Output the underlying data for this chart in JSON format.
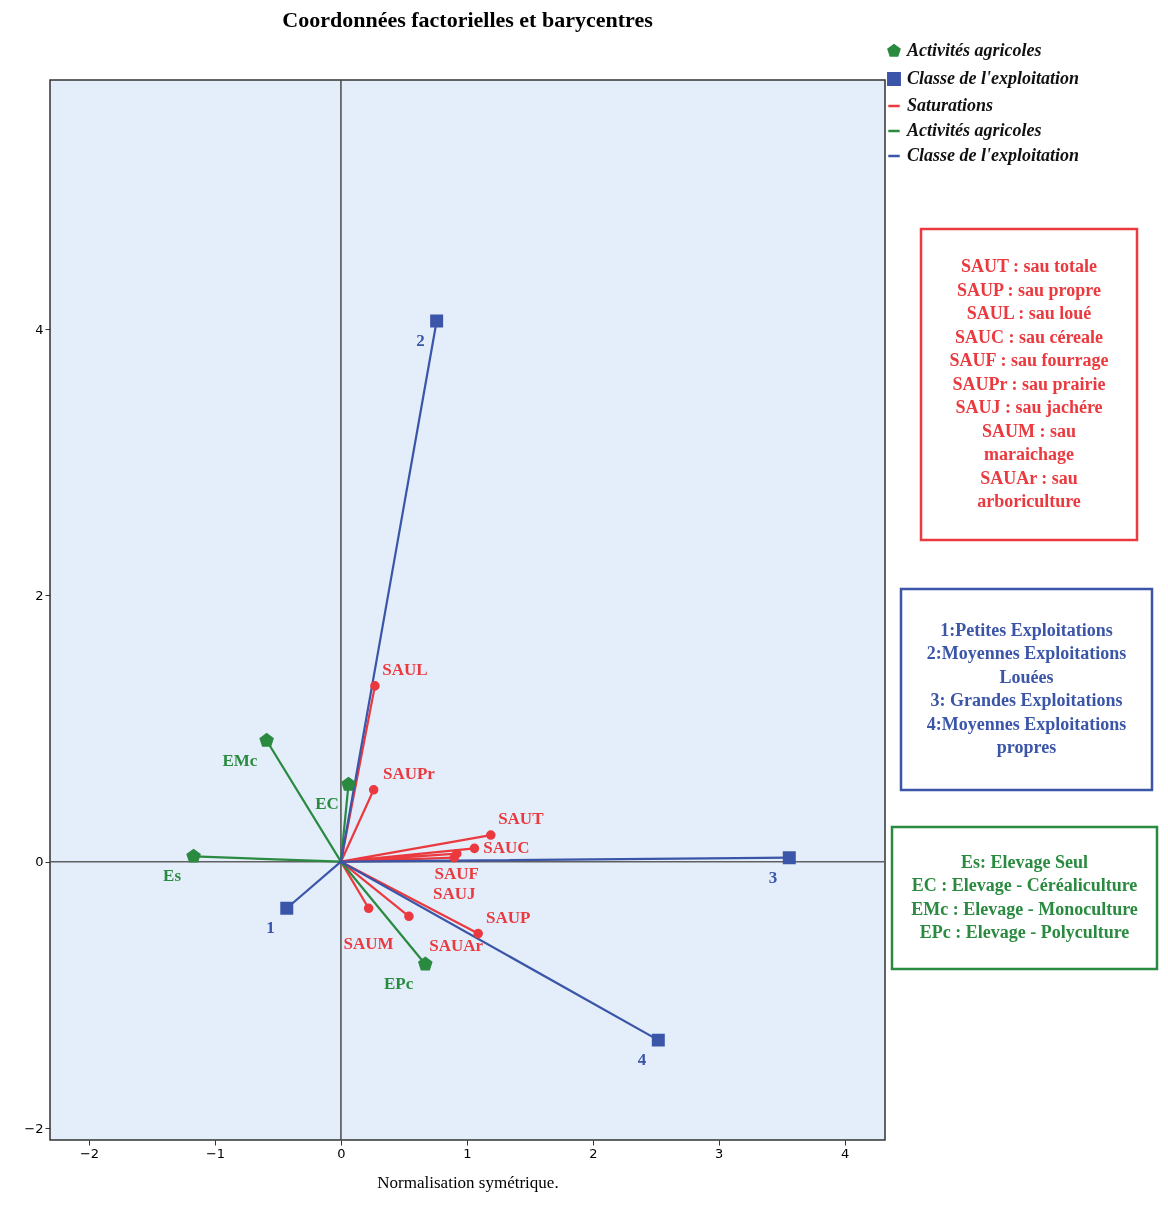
{
  "chart_data": {
    "type": "scatter",
    "title": "Coordonnées factorielles et barycentres",
    "xlabel": "Normalisation symétrique.",
    "xlim": [
      -2.31,
      4.32
    ],
    "ylim": [
      -2.09,
      5.87
    ],
    "xticks": [
      -2,
      -1,
      0,
      1,
      2,
      3,
      4
    ],
    "yticks": [
      -2,
      0,
      2,
      4
    ],
    "grid": false,
    "legend": "top right",
    "ref_lines": [
      {
        "axis": "x",
        "value": 0,
        "color": "#4a4a4a"
      },
      {
        "axis": "y",
        "value": 0,
        "color": "#606060"
      }
    ],
    "series": [
      {
        "name": "Activités agricoles",
        "color": "#2a8a40",
        "x": [
          -0.59,
          0.06,
          -1.17,
          0.67
        ],
        "values": [
          0.91,
          0.58,
          0.04,
          -0.77
        ]
      },
      {
        "name": "Classe  de l'exploitation",
        "color": "#3b55a8",
        "marker": "square",
        "x": [
          -0.43,
          0.76,
          3.56,
          2.52
        ],
        "values": [
          -0.35,
          4.06,
          0.03,
          -1.34
        ]
      },
      {
        "name": "Saturations",
        "type": "line",
        "color": "#ea3a3f",
        "marker": "none",
        "line_style": "solid",
        "x": [
          0,
          0.27,
          0,
          0.26,
          0,
          1.19,
          0,
          1.06,
          0,
          0.92,
          0,
          0.9,
          0,
          0.22,
          0,
          0.54,
          0,
          1.09
        ],
        "values": [
          0,
          1.32,
          0,
          0.54,
          0,
          0.2,
          0,
          0.1,
          0,
          0.06,
          0,
          0.03,
          0,
          -0.35,
          0,
          -0.41,
          0,
          -0.54
        ]
      },
      {
        "name": "Activités agricoles",
        "type": "line",
        "color": "#2a8a40",
        "marker": "none",
        "line_style": "solid",
        "x": [
          0,
          -0.59,
          0,
          0.06,
          0,
          -1.17,
          0,
          0.67
        ],
        "values": [
          0,
          0.91,
          0,
          0.58,
          0,
          0.04,
          0,
          -0.77
        ]
      },
      {
        "name": "Classe  de l'exploitation",
        "type": "line",
        "color": "#3b55a8",
        "marker": "none",
        "line_style": "solid",
        "x": [
          0,
          -0.43,
          0,
          0.76,
          0,
          3.56,
          0,
          2.52
        ],
        "values": [
          0,
          -0.35,
          0,
          4.06,
          0,
          0.03,
          0,
          -1.34
        ]
      },
      {
        "color": "#ea3a3f",
        "marker": "circle",
        "x": [
          0.27,
          0.26,
          1.19,
          1.06,
          0.92,
          0.9,
          0.22,
          0.54,
          1.09
        ],
        "values": [
          1.32,
          0.54,
          0.2,
          0.1,
          0.06,
          0.03,
          -0.35,
          -0.41,
          -0.54
        ]
      }
    ],
    "annotations": [
      "SAUT : sau totale\nSAUP : sau propre\nSAUL :  sau loué\nSAUC :  sau céreale\nSAUF  : sau fourrage\nSAUPr   : sau prairie\nSAUJ   : sau jachére\nSAUM : sau\nmaraichage\nSAUAr : sau\narboriculture",
      "1:Petites Exploitations\n2:Moyennes  Exploitations\nLouées\n3: Grandes Exploitations\n4:Moyennes  Exploitations\npropres",
      "Es: Elevage Seul\nEC : Elevage - Céréaliculture\nEMc : Elevage - Monoculture\nEPc : Elevage - Polyculture",
      {
        "text": "EMc",
        "x": -0.59,
        "y": 0.91
      },
      {
        "text": "EC",
        "x": 0.06,
        "y": 0.58
      },
      {
        "text": "Es",
        "x": -1.17,
        "y": 0.04
      },
      {
        "text": "EPc",
        "x": 0.67,
        "y": -0.77
      },
      {
        "text": "1",
        "x": -0.43,
        "y": -0.35
      },
      {
        "text": "2",
        "x": 0.76,
        "y": 4.06
      },
      {
        "text": "3",
        "x": 3.56,
        "y": 0.03
      },
      {
        "text": "4",
        "x": 2.52,
        "y": -1.34
      },
      {
        "text": "SAUL",
        "x": 0.27,
        "y": 1.32
      },
      {
        "text": "SAUPr",
        "x": 0.26,
        "y": 0.54
      },
      {
        "text": "SAUT",
        "x": 1.19,
        "y": 0.2
      },
      {
        "text": "SAUC",
        "x": 1.06,
        "y": 0.1
      },
      {
        "text": "SAUF",
        "x": 0.92,
        "y": 0.06
      },
      {
        "text": "SAUJ",
        "x": 0.9,
        "y": 0.03
      },
      {
        "text": "SAUM",
        "x": 0.22,
        "y": -0.35
      },
      {
        "text": "SAUAr",
        "x": 0.54,
        "y": -0.41
      },
      {
        "text": "SAUP",
        "x": 1.09,
        "y": -0.54
      }
    ]
  }
}
